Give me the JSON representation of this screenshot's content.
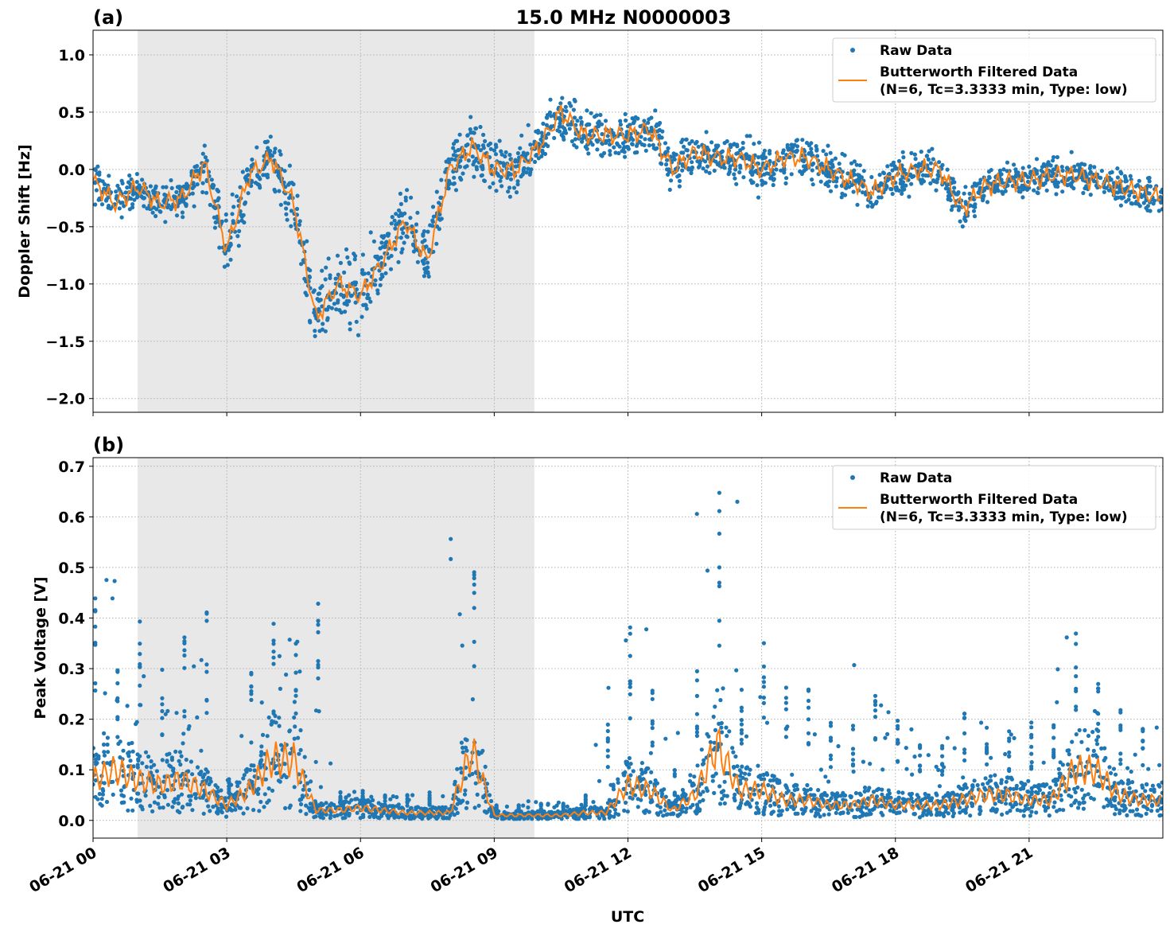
{
  "title": "15.0 MHz N0000003",
  "colors": {
    "raw": "#1f77b4",
    "filtered": "#ff7f0e",
    "shade": "#e8e8e8",
    "grid": "#b0b0b0"
  },
  "chart_data": [
    {
      "type": "scatter+line",
      "panel_label": "(a)",
      "ylabel": "Doppler Shift [Hz]",
      "xlabel": "",
      "xlim": [
        "06-21 00:00",
        "06-22 00:00"
      ],
      "ylim": [
        -2.12,
        1.215
      ],
      "yticks": [
        1.0,
        0.5,
        0.0,
        -0.5,
        -1.0,
        -1.5,
        -2.0
      ],
      "ytick_labels": [
        "1.0",
        "0.5",
        "0.0",
        "−0.5",
        "−1.0",
        "−1.5",
        "−2.0"
      ],
      "grid": true,
      "legend_placement": "upper right",
      "shaded_interval_hours": [
        1.0,
        9.9
      ],
      "x_hours": [
        0,
        0.5,
        1,
        1.5,
        2,
        2.5,
        3,
        3.5,
        4,
        4.5,
        5,
        5.5,
        6,
        6.5,
        7,
        7.5,
        8,
        8.5,
        9,
        9.5,
        10,
        10.5,
        11,
        11.5,
        12,
        12.5,
        13,
        13.5,
        14,
        14.5,
        15,
        15.5,
        16,
        16.5,
        17,
        17.5,
        18,
        18.5,
        19,
        19.5,
        20,
        20.5,
        21,
        21.5,
        22,
        22.5,
        23,
        23.5,
        24
      ],
      "series": [
        {
          "name": "Butterworth Filtered Data",
          "kind": "line",
          "values": [
            -0.1,
            -0.3,
            -0.15,
            -0.3,
            -0.25,
            0.05,
            -0.7,
            -0.05,
            0.1,
            -0.3,
            -1.3,
            -1.0,
            -1.1,
            -0.8,
            -0.45,
            -0.8,
            0.0,
            0.2,
            0.0,
            0.0,
            0.2,
            0.5,
            0.3,
            0.3,
            0.3,
            0.35,
            0.0,
            0.15,
            0.1,
            0.1,
            0.0,
            0.1,
            0.1,
            0.0,
            -0.1,
            -0.2,
            -0.05,
            0.0,
            0.0,
            -0.35,
            -0.15,
            -0.1,
            -0.1,
            -0.05,
            -0.05,
            -0.1,
            -0.15,
            -0.2,
            -0.25
          ]
        },
        {
          "name": "Raw Data",
          "kind": "scatter",
          "spread_about_filtered": [
            0.25,
            0.25,
            0.2,
            0.2,
            0.25,
            0.3,
            0.45,
            0.3,
            0.3,
            0.35,
            0.45,
            0.45,
            0.5,
            0.45,
            0.4,
            0.4,
            0.4,
            0.4,
            0.35,
            0.35,
            0.3,
            0.3,
            0.3,
            0.3,
            0.3,
            0.35,
            0.3,
            0.3,
            0.25,
            0.3,
            0.3,
            0.3,
            0.3,
            0.25,
            0.25,
            0.25,
            0.25,
            0.25,
            0.25,
            0.25,
            0.2,
            0.2,
            0.2,
            0.2,
            0.25,
            0.2,
            0.2,
            0.2,
            0.2
          ]
        }
      ],
      "legend": [
        "Raw Data",
        "Butterworth Filtered Data",
        "(N=6, Tc=3.3333 min, Type: low)"
      ]
    },
    {
      "type": "scatter+line",
      "panel_label": "(b)",
      "ylabel": "Peak Voltage [V]",
      "xlabel": "UTC",
      "xlim": [
        "06-21 00:00",
        "06-22 00:00"
      ],
      "ylim": [
        -0.035,
        0.717
      ],
      "yticks": [
        0.7,
        0.6,
        0.5,
        0.4,
        0.3,
        0.2,
        0.1,
        0.0
      ],
      "ytick_labels": [
        "0.7",
        "0.6",
        "0.5",
        "0.4",
        "0.3",
        "0.2",
        "0.1",
        "0.0"
      ],
      "xticks_hours": [
        0,
        3,
        6,
        9,
        12,
        15,
        18,
        21
      ],
      "xtick_labels": [
        "06-21 00",
        "06-21 03",
        "06-21 06",
        "06-21 09",
        "06-21 12",
        "06-21 15",
        "06-21 18",
        "06-21 21"
      ],
      "grid": true,
      "legend_placement": "upper right",
      "shaded_interval_hours": [
        1.0,
        9.9
      ],
      "x_hours": [
        0,
        0.5,
        1,
        1.5,
        2,
        2.5,
        3,
        3.5,
        4,
        4.5,
        5,
        5.5,
        6,
        6.5,
        7,
        7.5,
        8,
        8.5,
        9,
        9.5,
        10,
        10.5,
        11,
        11.5,
        12,
        12.5,
        13,
        13.5,
        14,
        14.5,
        15,
        15.5,
        16,
        16.5,
        17,
        17.5,
        18,
        18.5,
        19,
        19.5,
        20,
        20.5,
        21,
        21.5,
        22,
        22.5,
        23,
        23.5,
        24
      ],
      "series": [
        {
          "name": "Butterworth Filtered Data",
          "kind": "line",
          "values": [
            0.08,
            0.1,
            0.08,
            0.07,
            0.08,
            0.06,
            0.03,
            0.06,
            0.12,
            0.12,
            0.02,
            0.02,
            0.025,
            0.02,
            0.015,
            0.015,
            0.015,
            0.14,
            0.01,
            0.01,
            0.01,
            0.01,
            0.015,
            0.015,
            0.07,
            0.06,
            0.02,
            0.05,
            0.15,
            0.06,
            0.06,
            0.04,
            0.04,
            0.03,
            0.03,
            0.04,
            0.03,
            0.03,
            0.03,
            0.04,
            0.05,
            0.05,
            0.04,
            0.04,
            0.1,
            0.1,
            0.05,
            0.04,
            0.04
          ]
        },
        {
          "name": "Raw Data",
          "kind": "scatter",
          "max_values": [
            0.48,
            0.3,
            0.42,
            0.3,
            0.39,
            0.42,
            0.1,
            0.3,
            0.39,
            0.36,
            0.52,
            0.06,
            0.06,
            0.05,
            0.05,
            0.06,
            0.03,
            0.58,
            0.03,
            0.03,
            0.04,
            0.04,
            0.05,
            0.2,
            0.4,
            0.27,
            0.1,
            0.3,
            0.68,
            0.3,
            0.39,
            0.27,
            0.27,
            0.2,
            0.2,
            0.31,
            0.2,
            0.15,
            0.15,
            0.22,
            0.2,
            0.18,
            0.2,
            0.2,
            0.38,
            0.3,
            0.22,
            0.2,
            0.28
          ]
        }
      ],
      "legend": [
        "Raw Data",
        "Butterworth Filtered Data",
        "(N=6, Tc=3.3333 min, Type: low)"
      ]
    }
  ]
}
